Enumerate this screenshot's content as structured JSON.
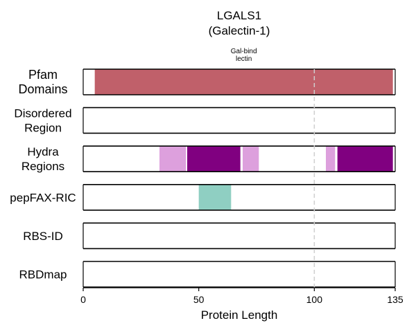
{
  "chart_data": {
    "type": "bar",
    "title": [
      "LGALS1",
      "(Galectin-1)"
    ],
    "xlabel": "Protein Length",
    "xlim": [
      0,
      135
    ],
    "xticks": [
      0,
      50,
      100,
      135
    ],
    "reference_line": 100,
    "tracks": [
      {
        "name": [
          "Pfam",
          "Domains"
        ],
        "segments": [
          {
            "start": 5,
            "end": 134,
            "color": "#c0606a",
            "label": [
              "Gal-bind",
              "lectin"
            ]
          }
        ]
      },
      {
        "name": [
          "Disordered",
          "Region"
        ],
        "segments": []
      },
      {
        "name": [
          "Hydra",
          "Regions"
        ],
        "segments": [
          {
            "start": 33,
            "end": 44.5,
            "color": "#dda0dd"
          },
          {
            "start": 45,
            "end": 68,
            "color": "#800080"
          },
          {
            "start": 69,
            "end": 76,
            "color": "#dda0dd"
          },
          {
            "start": 105,
            "end": 109,
            "color": "#dda0dd"
          },
          {
            "start": 110,
            "end": 134,
            "color": "#800080"
          }
        ]
      },
      {
        "name": [
          "pepFAX-RIC"
        ],
        "segments": [
          {
            "start": 50,
            "end": 64,
            "color": "#8fcfc2"
          }
        ]
      },
      {
        "name": [
          "RBS-ID"
        ],
        "segments": []
      },
      {
        "name": [
          "RBDmap"
        ],
        "segments": []
      }
    ]
  }
}
